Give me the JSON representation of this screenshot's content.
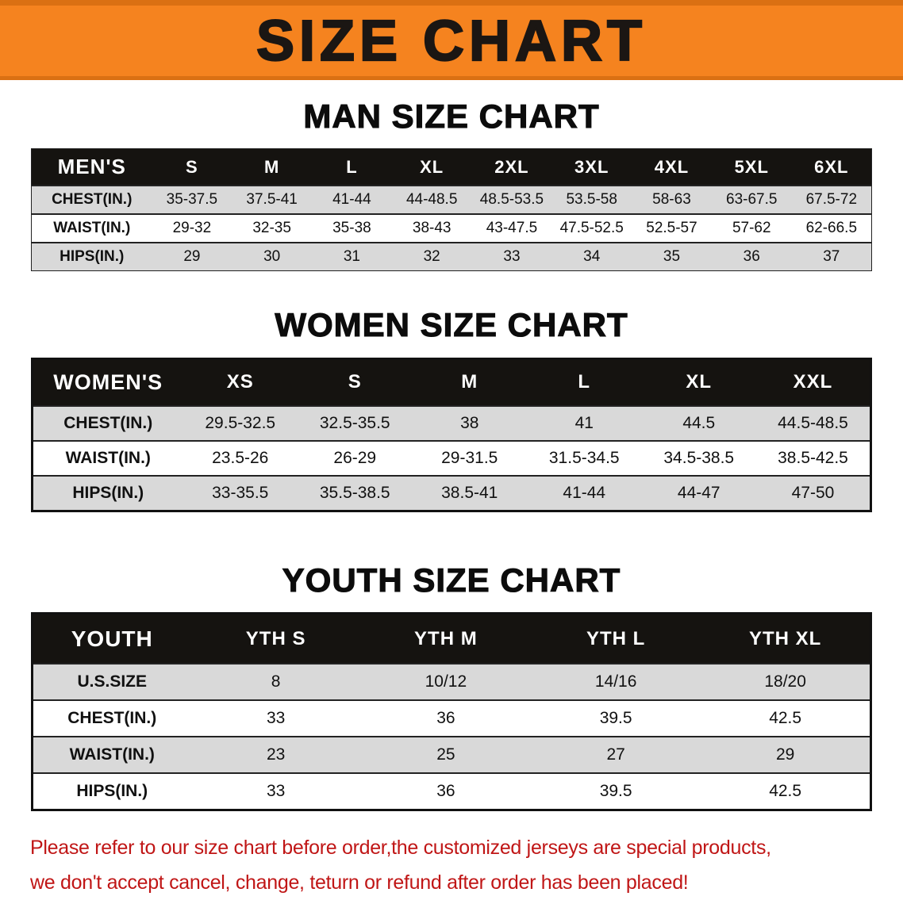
{
  "banner": {
    "title": "SIZE CHART"
  },
  "sections": [
    {
      "heading": "MAN SIZE CHART",
      "table": {
        "header": [
          "MEN'S",
          "S",
          "M",
          "L",
          "XL",
          "2XL",
          "3XL",
          "4XL",
          "5XL",
          "6XL"
        ],
        "rows": [
          [
            "CHEST(IN.)",
            "35-37.5",
            "37.5-41",
            "41-44",
            "44-48.5",
            "48.5-53.5",
            "53.5-58",
            "58-63",
            "63-67.5",
            "67.5-72"
          ],
          [
            "WAIST(IN.)",
            "29-32",
            "32-35",
            "35-38",
            "38-43",
            "43-47.5",
            "47.5-52.5",
            "52.5-57",
            "57-62",
            "62-66.5"
          ],
          [
            "HIPS(IN.)",
            "29",
            "30",
            "31",
            "32",
            "33",
            "34",
            "35",
            "36",
            "37"
          ]
        ]
      }
    },
    {
      "heading": "WOMEN SIZE CHART",
      "table": {
        "header": [
          "WOMEN'S",
          "XS",
          "S",
          "M",
          "L",
          "XL",
          "XXL"
        ],
        "rows": [
          [
            "CHEST(IN.)",
            "29.5-32.5",
            "32.5-35.5",
            "38",
            "41",
            "44.5",
            "44.5-48.5"
          ],
          [
            "WAIST(IN.)",
            "23.5-26",
            "26-29",
            "29-31.5",
            "31.5-34.5",
            "34.5-38.5",
            "38.5-42.5"
          ],
          [
            "HIPS(IN.)",
            "33-35.5",
            "35.5-38.5",
            "38.5-41",
            "41-44",
            "44-47",
            "47-50"
          ]
        ]
      }
    },
    {
      "heading": "YOUTH SIZE CHART",
      "table": {
        "header": [
          "YOUTH",
          "YTH S",
          "YTH M",
          "YTH L",
          "YTH XL"
        ],
        "rows": [
          [
            "U.S.SIZE",
            "8",
            "10/12",
            "14/16",
            "18/20"
          ],
          [
            "CHEST(IN.)",
            "33",
            "36",
            "39.5",
            "42.5"
          ],
          [
            "WAIST(IN.)",
            "23",
            "25",
            "27",
            "29"
          ],
          [
            "HIPS(IN.)",
            "33",
            "36",
            "39.5",
            "42.5"
          ]
        ]
      }
    }
  ],
  "footer": {
    "line1": "Please refer to our size chart before order,the customized jerseys are special products,",
    "line2": "we don't accept cancel, change, teturn or refund after order has been placed!"
  },
  "colors": {
    "banner_bg": "#f5831f",
    "banner_edge": "#da7013",
    "banner_text": "#1b1613",
    "header_bg": "#151310",
    "header_text": "#ffffff",
    "row_gray": "#d9d9d9",
    "line": "#222222",
    "notice_red": "#c01616"
  }
}
